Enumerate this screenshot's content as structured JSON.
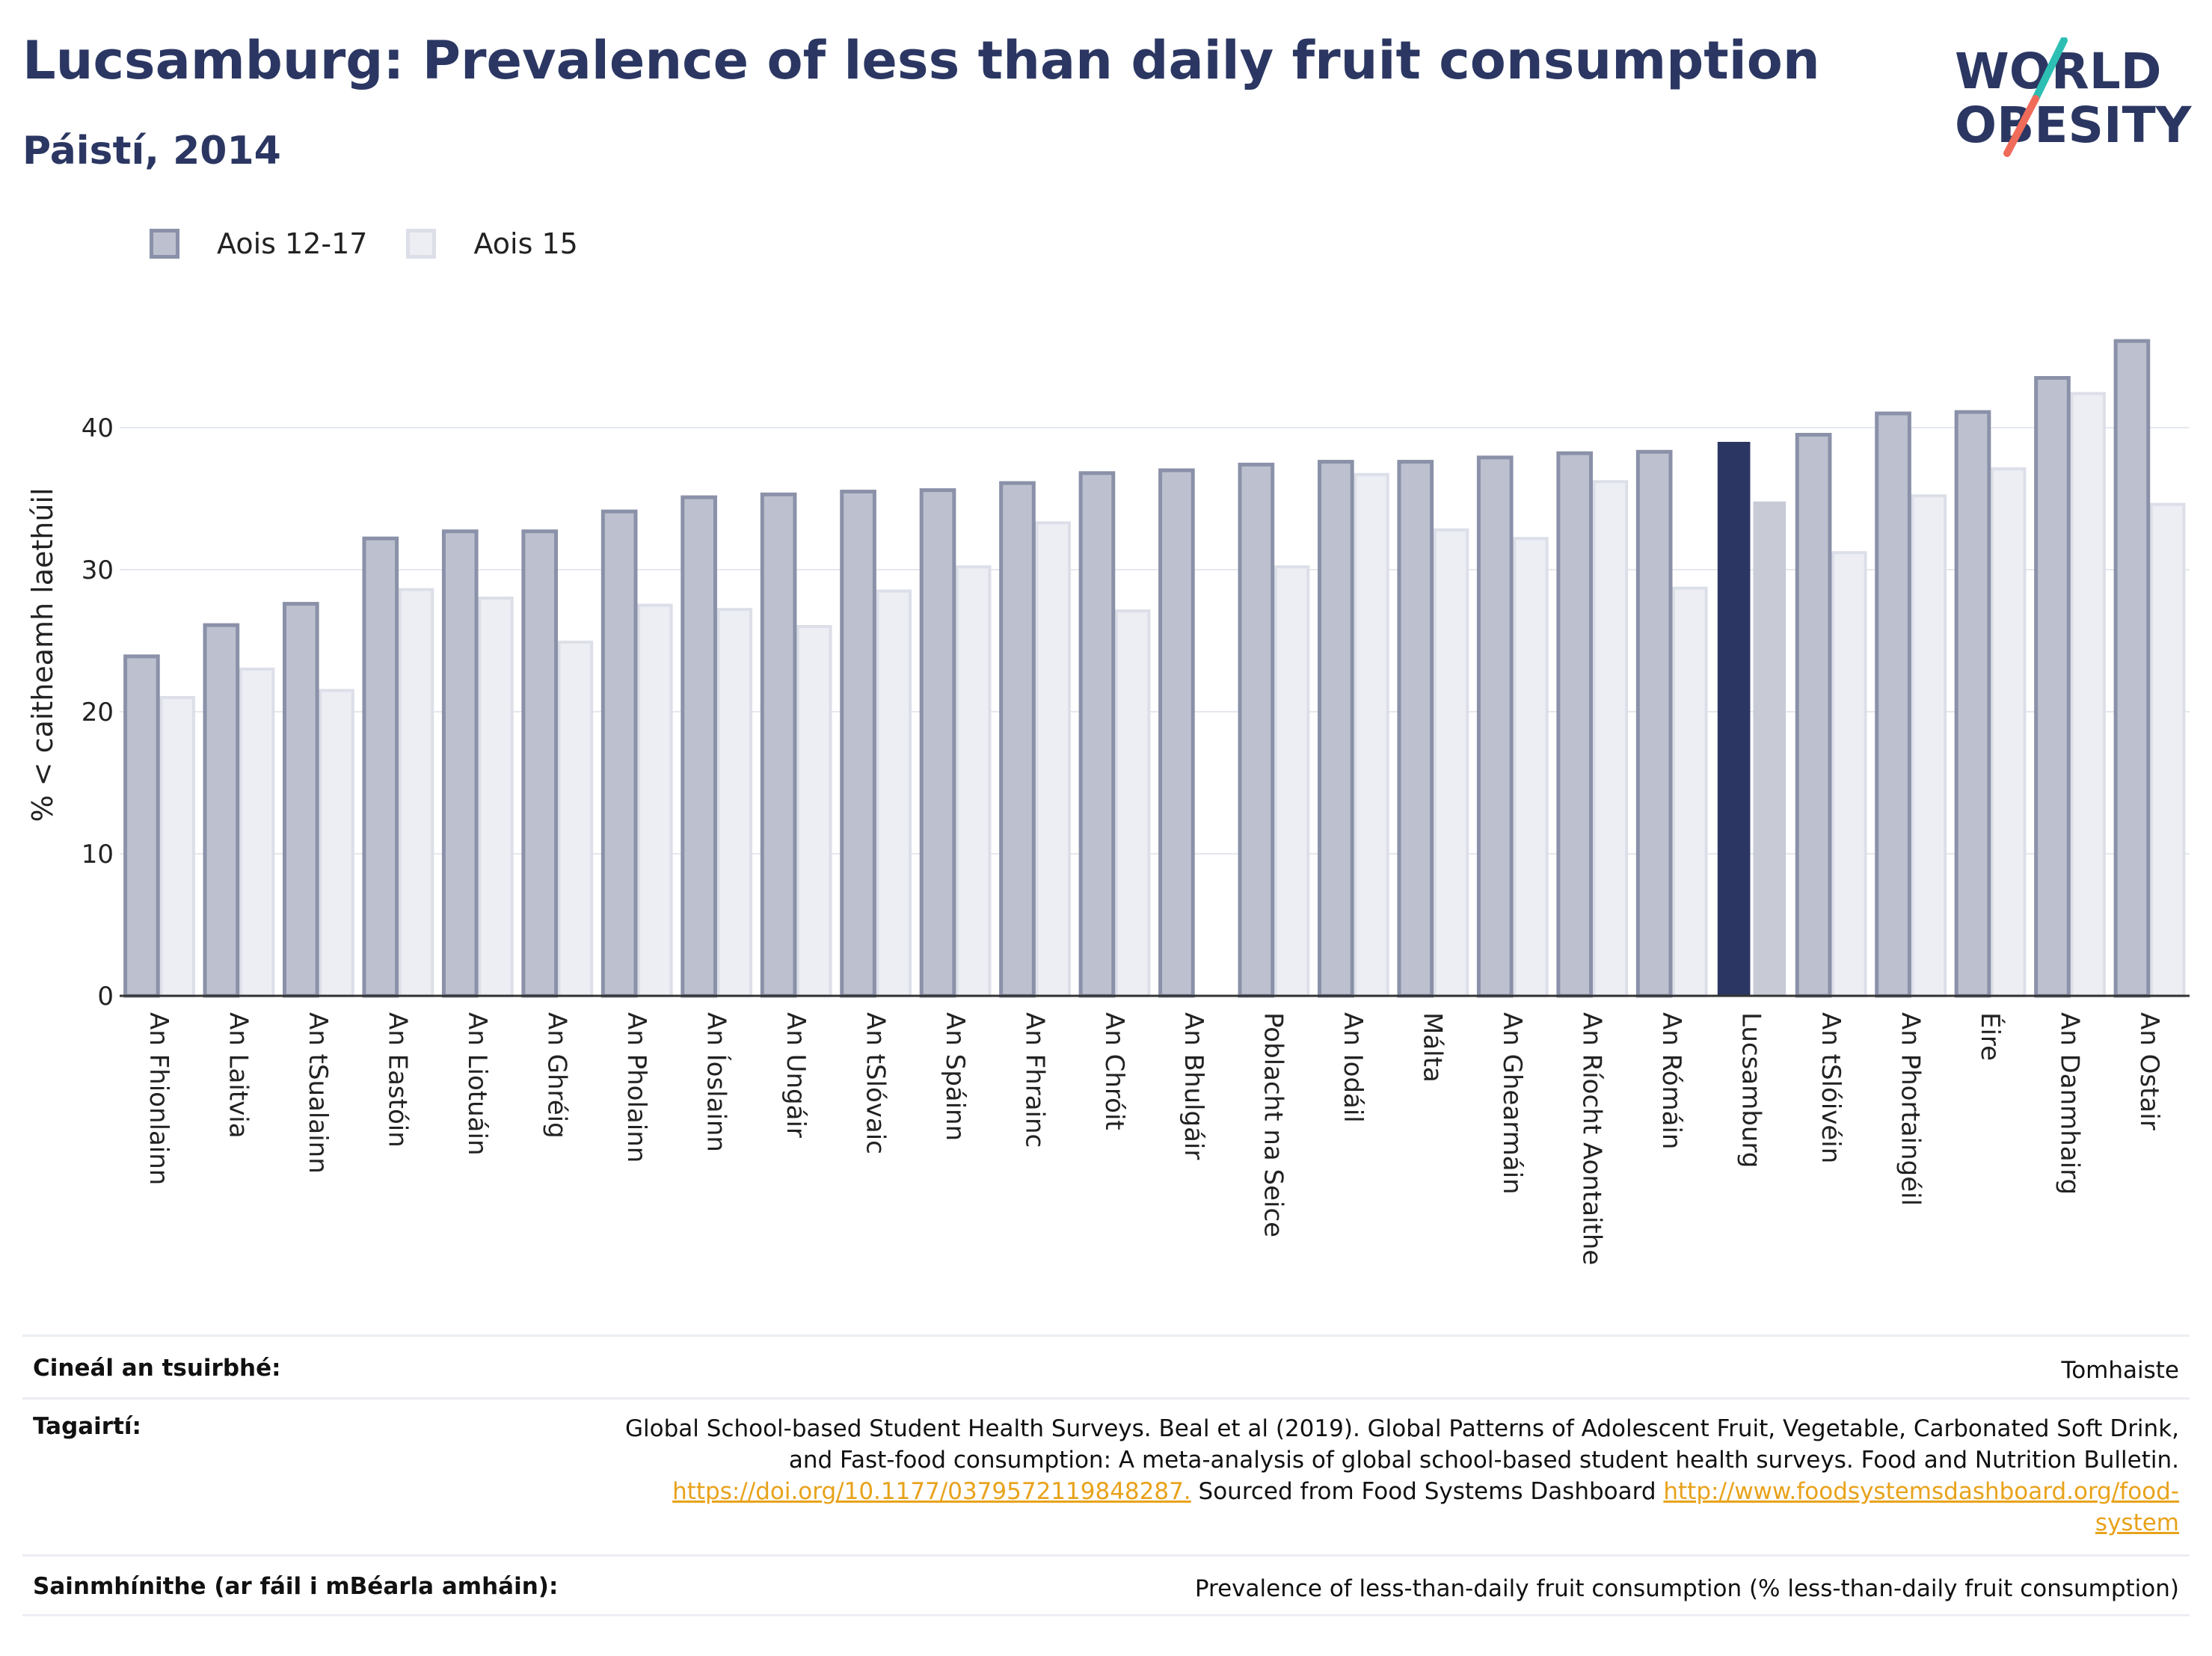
{
  "header": {
    "title": "Lucsamburg: Prevalence of less than daily fruit consumption",
    "subtitle": "Páistí, 2014"
  },
  "logo": {
    "line1": "WORLD",
    "line2": "OBESITY"
  },
  "colors": {
    "primary": "#2b3762",
    "series1_fill": "#bdc1cf",
    "series1_stroke": "#8a91a8",
    "series2_fill": "#eceef3",
    "series2_stroke": "#dcdfe8",
    "highlight1": "#2b3762",
    "highlight2": "#c8cad6",
    "link": "#e8a21a",
    "logo_teal": "#2dbfb4",
    "logo_coral": "#f06b5a"
  },
  "legend": [
    {
      "label": "Aois 12-17"
    },
    {
      "label": "Aois 15"
    }
  ],
  "chart_data": {
    "type": "bar",
    "title": "Lucsamburg: Prevalence of less than daily fruit consumption",
    "subtitle": "Páistí, 2014",
    "ylabel": "% < caitheamh laethúil",
    "xlabel": "",
    "ylim": [
      0,
      48
    ],
    "yticks": [
      0,
      10,
      20,
      30,
      40
    ],
    "grid": true,
    "legend_position": "top-left",
    "highlight": "Lucsamburg",
    "categories": [
      "An Fhionlainn",
      "An Laitvia",
      "An tSualainn",
      "An Eastóin",
      "An Liotuáin",
      "An Ghréig",
      "An Pholainn",
      "An Íoslainn",
      "An Ungáir",
      "An tSlóvaic",
      "An Spáinn",
      "An Fhrainc",
      "An Chróit",
      "An Bhulgáir",
      "Poblacht na Seice",
      "An Iodáil",
      "Málta",
      "An Ghearmáin",
      "An Ríocht Aontaithe",
      "An Rómáin",
      "Lucsamburg",
      "An tSlóivéin",
      "An Phortaingéil",
      "Éire",
      "An Danmhairg",
      "An Ostair"
    ],
    "category_labels": [
      "An Fhionlainn",
      "An Laitvia",
      "An tSualainn",
      "An Eastóin",
      "An Liotuáin",
      "An Ghréig",
      "An Pholainn",
      "An Íoslainn",
      "An Ungáir",
      "An tSlóvaic",
      "An Spáinn",
      "An Fhrainc",
      "An Chróit",
      "An Bhulgáir",
      "Poblacht na Seice",
      "An Iodáil",
      "Málta",
      "An Ghearmáin",
      "An Ríocht Aontaithe",
      "An Rómáin",
      "Lucsamburg",
      "An tSlóivéin",
      "An Phortaingéil",
      "Éire",
      "An Danmhairg",
      "An Ostair"
    ],
    "series": [
      {
        "name": "Aois 12-17",
        "values": [
          23.9,
          26.1,
          27.6,
          32.2,
          32.7,
          32.7,
          34.1,
          35.1,
          35.3,
          35.5,
          35.6,
          36.1,
          36.8,
          37.0,
          37.4,
          37.6,
          37.6,
          37.9,
          38.2,
          38.3,
          39.0,
          39.5,
          41.0,
          41.1,
          43.5,
          46.1
        ]
      },
      {
        "name": "Aois 15",
        "values": [
          21.0,
          23.0,
          21.5,
          28.6,
          28.0,
          24.9,
          27.5,
          27.2,
          26.0,
          28.5,
          30.2,
          33.3,
          27.1,
          null,
          30.2,
          36.7,
          32.8,
          32.2,
          36.2,
          28.7,
          34.8,
          31.2,
          35.2,
          37.1,
          42.4,
          34.6
        ]
      }
    ]
  },
  "meta": {
    "survey_type_key": "Cineál an tsuirbhé:",
    "survey_type_value": "Tomhaiste",
    "references_key": "Tagairtí:",
    "references_line1": "Global School-based Student Health Surveys. Beal et al (2019). Global Patterns of Adolescent Fruit, Vegetable, Carbonated Soft Drink,",
    "references_line2": "and Fast-food consumption: A meta-analysis of global school-based student health surveys. Food and Nutrition Bulletin.",
    "references_link1": "https://doi.org/10.1177/0379572119848287.",
    "references_mid": " Sourced from Food Systems Dashboard ",
    "references_link2a": "http://www.foodsystemsdashboard.org/food-",
    "references_link2b": "system",
    "definitions_key": "Sainmhínithe (ar fáil i mBéarla amháin):",
    "definitions_value": "Prevalence of less-than-daily fruit consumption (% less-than-daily fruit consumption)"
  }
}
